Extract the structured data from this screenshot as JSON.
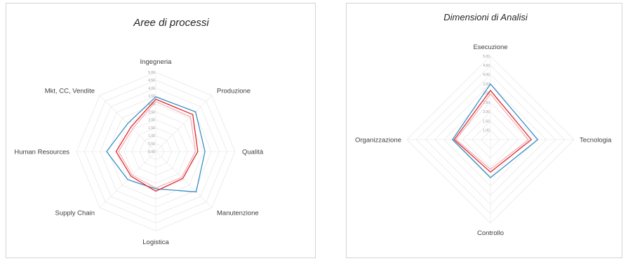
{
  "chart_data": [
    {
      "type": "radar",
      "title": "Aree di processi",
      "categories": [
        "Ingegneria",
        "Produzione",
        "Qualità",
        "Manutenzione",
        "Logistica",
        "Supply Chain",
        "Human Resources",
        "Mkt, CC, Vendite"
      ],
      "ticks": [
        "0,00",
        "0,50",
        "1,00",
        "1,50",
        "2,00",
        "2,50",
        "3,00",
        "3,50",
        "4,00",
        "4,50",
        "5,00"
      ],
      "rmax": 5,
      "grid": true,
      "legend": "none",
      "series": [
        {
          "color": "#3a8fc4",
          "values": [
            3.45,
            3.55,
            3.1,
            3.6,
            2.35,
            2.5,
            3.1,
            2.5
          ]
        },
        {
          "color": "#e0282e",
          "values": [
            3.3,
            3.3,
            2.65,
            2.4,
            2.5,
            2.2,
            2.5,
            2.2
          ]
        },
        {
          "color": "#f2a0a4",
          "values": [
            3.15,
            3.1,
            2.5,
            2.3,
            2.3,
            2.1,
            2.35,
            2.05
          ]
        }
      ]
    },
    {
      "type": "radar",
      "title": "Dimensioni di Analisi",
      "categories": [
        "Esecuzione",
        "Tecnologia",
        "Controllo",
        "Organizzazione"
      ],
      "ticks": [
        "1,00",
        "1,50",
        "2,00",
        "2,50",
        "3,00",
        "3,50",
        "4,00",
        "4,50",
        "5,00"
      ],
      "rmin": 0.5,
      "rmax": 5,
      "grid": true,
      "legend": "none",
      "series": [
        {
          "color": "#3a8fc4",
          "values": [
            3.5,
            3.05,
            2.55,
            2.55
          ]
        },
        {
          "color": "#e0282e",
          "values": [
            3.15,
            2.7,
            2.25,
            2.45
          ]
        },
        {
          "color": "#f2a0a4",
          "values": [
            2.95,
            2.55,
            2.1,
            2.35
          ]
        }
      ]
    }
  ]
}
